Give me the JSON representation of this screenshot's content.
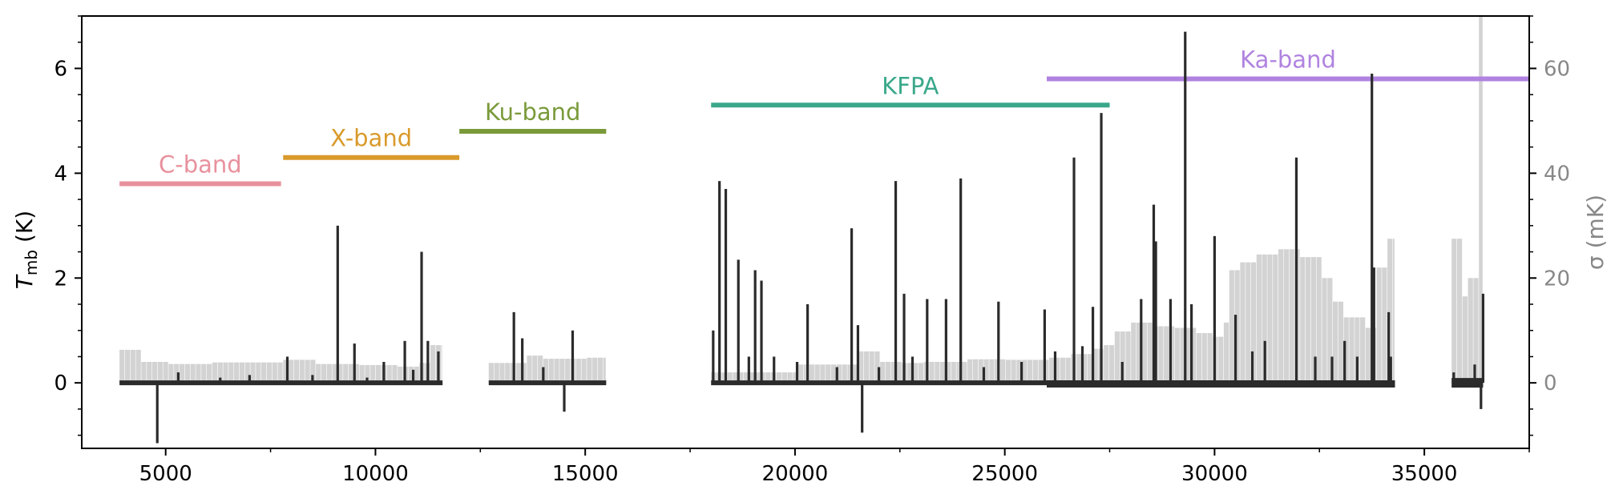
{
  "chart_data": {
    "type": "line",
    "title": "",
    "xlabel": "",
    "ylabel": "T_mb (K)",
    "ylabel_main": "T",
    "ylabel_sub": "mb",
    "ylabel_unit": " (K)",
    "ylabel_right": "σ (mK)",
    "xlim": [
      3000,
      37500
    ],
    "ylim": [
      -1.25,
      7.0
    ],
    "ylim_right": [
      -12.5,
      70.0
    ],
    "x_ticks": [
      5000,
      10000,
      15000,
      20000,
      25000,
      30000,
      35000
    ],
    "y_ticks": [
      0,
      2,
      4,
      6
    ],
    "y_ticks_right": [
      0,
      20,
      40,
      60
    ],
    "colors": {
      "spectrum": "#2b2b2b",
      "noise": "#d3d3d3",
      "right_axis": "#888888"
    },
    "bands": [
      {
        "name": "C-band",
        "x_start": 3900,
        "x_end": 7750,
        "y": 3.8,
        "color": "#e8919d"
      },
      {
        "name": "X-band",
        "x_start": 7800,
        "x_end": 12000,
        "y": 4.3,
        "color": "#d99a2b"
      },
      {
        "name": "Ku-band",
        "x_start": 12000,
        "x_end": 15500,
        "y": 4.8,
        "color": "#7a9a3a"
      },
      {
        "name": "KFPA",
        "x_start": 18000,
        "x_end": 27500,
        "y": 5.3,
        "color": "#3aa88a"
      },
      {
        "name": "Ka-band",
        "x_start": 26000,
        "x_end": 37500,
        "y": 5.8,
        "color": "#b083e0"
      }
    ],
    "spectrum_segments": [
      {
        "x_start": 3900,
        "x_end": 11600
      },
      {
        "x_start": 12700,
        "x_end": 15500
      },
      {
        "x_start": 18000,
        "x_end": 34300
      },
      {
        "x_start": 35650,
        "x_end": 36400
      }
    ],
    "lines": [
      [
        4800,
        -1.15
      ],
      [
        5300,
        0.2
      ],
      [
        6300,
        0.1
      ],
      [
        7000,
        0.15
      ],
      [
        7900,
        0.5
      ],
      [
        8500,
        0.15
      ],
      [
        9100,
        3.0
      ],
      [
        9500,
        0.75
      ],
      [
        9800,
        0.1
      ],
      [
        10200,
        0.4
      ],
      [
        10700,
        0.8
      ],
      [
        11100,
        2.5
      ],
      [
        11250,
        0.8
      ],
      [
        11500,
        0.6
      ],
      [
        10900,
        0.25
      ],
      [
        13300,
        1.35
      ],
      [
        13500,
        0.85
      ],
      [
        14000,
        0.3
      ],
      [
        14500,
        -0.55
      ],
      [
        14700,
        1.0
      ],
      [
        18050,
        1.0
      ],
      [
        18200,
        3.85
      ],
      [
        18350,
        3.7
      ],
      [
        18650,
        2.35
      ],
      [
        18900,
        0.5
      ],
      [
        19050,
        2.15
      ],
      [
        19200,
        1.95
      ],
      [
        19500,
        0.5
      ],
      [
        20050,
        0.4
      ],
      [
        20300,
        1.5
      ],
      [
        21000,
        0.3
      ],
      [
        21350,
        2.95
      ],
      [
        21500,
        1.1
      ],
      [
        21600,
        -0.95
      ],
      [
        22000,
        0.3
      ],
      [
        22400,
        3.85
      ],
      [
        22600,
        1.7
      ],
      [
        22800,
        0.5
      ],
      [
        23150,
        1.6
      ],
      [
        23600,
        1.6
      ],
      [
        23950,
        3.9
      ],
      [
        24500,
        0.3
      ],
      [
        24850,
        1.55
      ],
      [
        25400,
        0.4
      ],
      [
        25950,
        1.4
      ],
      [
        26200,
        0.6
      ],
      [
        26650,
        4.3
      ],
      [
        26850,
        0.7
      ],
      [
        27100,
        1.45
      ],
      [
        27300,
        5.15
      ],
      [
        27800,
        0.4
      ],
      [
        28250,
        1.6
      ],
      [
        28550,
        3.4
      ],
      [
        28600,
        2.7
      ],
      [
        28950,
        1.6
      ],
      [
        29300,
        6.7
      ],
      [
        29450,
        1.5
      ],
      [
        30000,
        2.8
      ],
      [
        30500,
        1.3
      ],
      [
        30900,
        0.6
      ],
      [
        31200,
        0.8
      ],
      [
        31950,
        4.3
      ],
      [
        32400,
        0.5
      ],
      [
        32800,
        0.5
      ],
      [
        33100,
        0.8
      ],
      [
        33400,
        0.5
      ],
      [
        33750,
        5.9
      ],
      [
        33800,
        2.2
      ],
      [
        34150,
        1.35
      ],
      [
        34200,
        0.5
      ],
      [
        35700,
        0.2
      ],
      [
        36200,
        0.35
      ],
      [
        36400,
        1.7
      ],
      [
        36350,
        -0.5
      ]
    ],
    "noise_profile": [
      [
        3900,
        6.3
      ],
      [
        4300,
        4.0
      ],
      [
        5000,
        3.6
      ],
      [
        6000,
        3.9
      ],
      [
        7000,
        3.9
      ],
      [
        7750,
        4.4
      ],
      [
        8500,
        3.6
      ],
      [
        9500,
        3.4
      ],
      [
        10500,
        3.1
      ],
      [
        11000,
        3.8
      ],
      [
        11300,
        7.2
      ],
      [
        11600,
        7.2
      ],
      [
        12700,
        3.8
      ],
      [
        13500,
        5.2
      ],
      [
        14000,
        4.6
      ],
      [
        15000,
        4.8
      ],
      [
        15500,
        4.8
      ],
      [
        18000,
        2.0
      ],
      [
        20000,
        3.5
      ],
      [
        21500,
        6.0
      ],
      [
        22000,
        4.0
      ],
      [
        22500,
        3.8
      ],
      [
        23000,
        4.0
      ],
      [
        24000,
        4.5
      ],
      [
        25000,
        4.4
      ],
      [
        26000,
        4.8
      ],
      [
        26500,
        5.5
      ],
      [
        27000,
        6.5
      ],
      [
        27300,
        7.2
      ],
      [
        27500,
        9.8
      ],
      [
        28000,
        11.5
      ],
      [
        28500,
        10.8
      ],
      [
        29000,
        10.5
      ],
      [
        29500,
        9.5
      ],
      [
        29900,
        8.8
      ],
      [
        30100,
        11.5
      ],
      [
        30300,
        21.5
      ],
      [
        30500,
        23.0
      ],
      [
        31000,
        24.5
      ],
      [
        31500,
        25.5
      ],
      [
        32000,
        24.0
      ],
      [
        32500,
        20.0
      ],
      [
        32800,
        15.5
      ],
      [
        33000,
        12.5
      ],
      [
        33500,
        10.5
      ],
      [
        33800,
        22.0
      ],
      [
        34000,
        27.5
      ],
      [
        34300,
        29.0
      ],
      [
        35650,
        27.5
      ],
      [
        35800,
        16.5
      ],
      [
        36000,
        20.0
      ],
      [
        36200,
        17.0
      ],
      [
        36300,
        70.0
      ],
      [
        36400,
        17.0
      ]
    ]
  }
}
